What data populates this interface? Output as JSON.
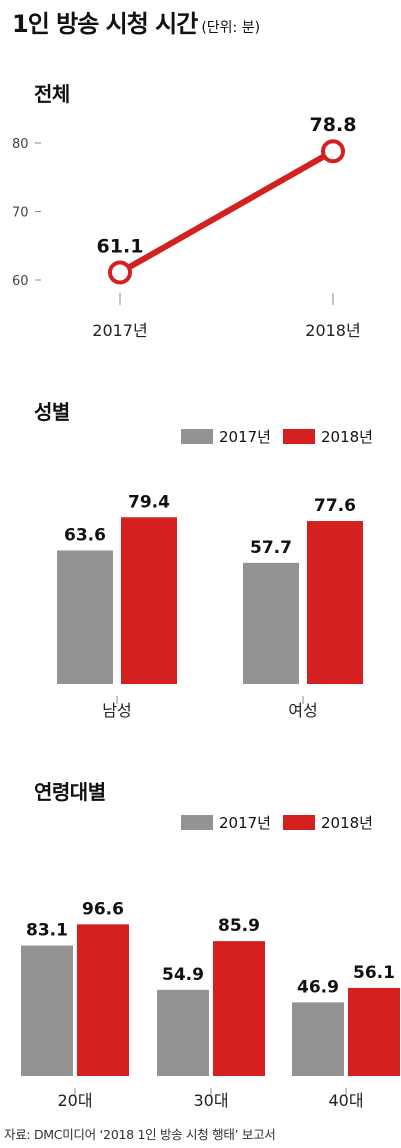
{
  "title": "1인 방송 시청 시간",
  "unit": "(단위: 분)",
  "colors": {
    "y2017": "#939393",
    "y2018": "#d4201f",
    "line": "#d4201f"
  },
  "chart_data": [
    {
      "type": "line",
      "title": "전체",
      "categories": [
        "2017년",
        "2018년"
      ],
      "values": [
        61.1,
        78.8
      ],
      "value_labels": [
        "61.1",
        "78.8"
      ],
      "yticks": [
        "60",
        "70",
        "80"
      ],
      "ylim": [
        60,
        80
      ]
    },
    {
      "type": "bar",
      "title": "성별",
      "categories": [
        "남성",
        "여성"
      ],
      "series": [
        {
          "name": "2017년",
          "values": [
            63.6,
            57.7
          ],
          "labels": [
            "63.6",
            "57.7"
          ]
        },
        {
          "name": "2018년",
          "values": [
            79.4,
            77.6
          ],
          "labels": [
            "79.4",
            "77.6"
          ]
        }
      ]
    },
    {
      "type": "bar",
      "title": "연령대별",
      "categories": [
        "20대",
        "30대",
        "40대"
      ],
      "series": [
        {
          "name": "2017년",
          "values": [
            83.1,
            54.9,
            46.9
          ],
          "labels": [
            "83.1",
            "54.9",
            "46.9"
          ]
        },
        {
          "name": "2018년",
          "values": [
            96.6,
            85.9,
            56.1
          ],
          "labels": [
            "96.6",
            "85.9",
            "56.1"
          ]
        }
      ]
    }
  ],
  "source": "자료: DMC미디어 ‘2018 1인 방송 시청 행태’ 보고서"
}
